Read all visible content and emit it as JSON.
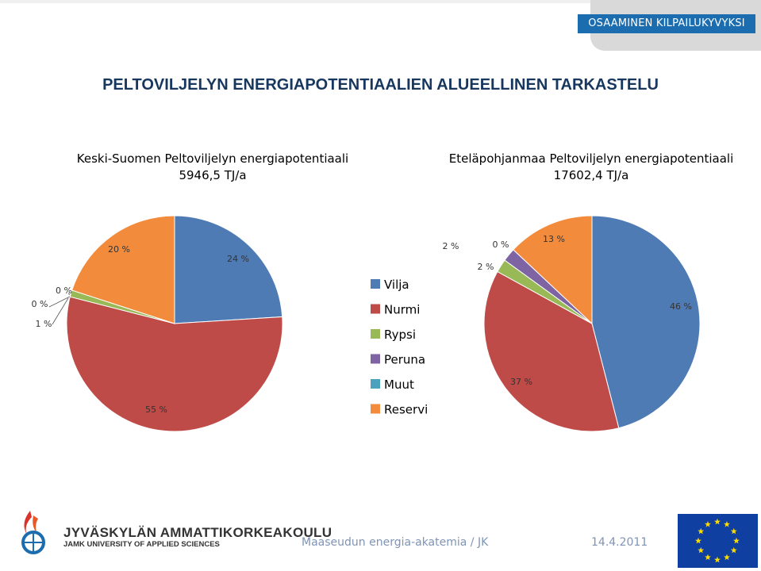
{
  "header": {
    "banner": "OSAAMINEN KILPAILUKYVYKSI"
  },
  "slide_title": "PELTOVILJELYN ENERGIAPOTENTIAALIEN ALUEELLINEN TARKASTELU",
  "colors": {
    "Vilja": "#4f7bb5",
    "Nurmi": "#bf4b48",
    "Rypsi": "#98b955",
    "Peruna": "#7e64a2",
    "Muut": "#4aa2be",
    "Reservi": "#f28c3c"
  },
  "chart_data": [
    {
      "type": "pie",
      "title": "Keski-Suomen Peltoviljelyn energiapotentiaali",
      "subtitle": "5946,5 TJ/a",
      "categories": [
        "Vilja",
        "Nurmi",
        "Rypsi",
        "Peruna",
        "Muut",
        "Reservi"
      ],
      "values": [
        24,
        55,
        1,
        0,
        0,
        20
      ],
      "data_labels": [
        "24 %",
        "55 %",
        "1 %",
        "0 %",
        "0 %",
        "20 %"
      ]
    },
    {
      "type": "pie",
      "title": "Eteläpohjanmaa Peltoviljelyn energiapotentiaali",
      "subtitle": "17602,4 TJ/a",
      "categories": [
        "Vilja",
        "Nurmi",
        "Rypsi",
        "Peruna",
        "Muut",
        "Reservi"
      ],
      "values": [
        46,
        37,
        2,
        2,
        0,
        13
      ],
      "data_labels": [
        "46 %",
        "37 %",
        "2 %",
        "2 %",
        "0 %",
        "13 %"
      ]
    }
  ],
  "legend": [
    "Vilja",
    "Nurmi",
    "Rypsi",
    "Peruna",
    "Muut",
    "Reservi"
  ],
  "footer": {
    "institution": "JYVÄSKYLÄN AMMATTIKORKEAKOULU",
    "institution_en": "JAMK UNIVERSITY OF APPLIED SCIENCES",
    "text": "Maaseudun energia-akatemia / JK",
    "date": "14.4.2011"
  }
}
